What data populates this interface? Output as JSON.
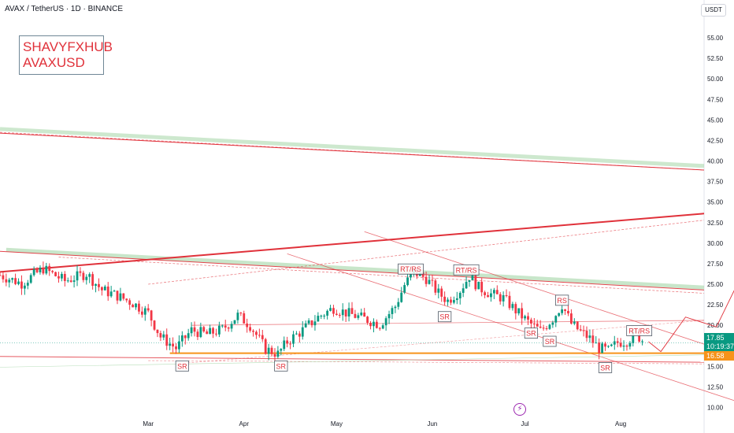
{
  "header": {
    "title": "AVAX / TetherUS · 1D · BINANCE"
  },
  "currency_button": "USDT",
  "watermark": {
    "line1": "SHAVYFXHUB",
    "line2": "AVAXUSD"
  },
  "price_tag": {
    "price": "17.85",
    "countdown": "10:19:37"
  },
  "support_tag": {
    "price": "16.58"
  },
  "icons": {
    "alert": "lightning-icon"
  },
  "colors": {
    "up": "#089981",
    "down": "#f23645",
    "trendline": "#e0313a",
    "channel_green": "#a5d6a7",
    "support": "#f7931a"
  },
  "chart_data": {
    "type": "candlestick",
    "symbol": "AVAX / TetherUS",
    "timeframe": "1D",
    "exchange": "BINANCE",
    "y_axis": {
      "ticks": [
        "55.00",
        "52.50",
        "50.00",
        "47.50",
        "45.00",
        "42.50",
        "40.00",
        "37.50",
        "35.00",
        "32.50",
        "30.00",
        "27.50",
        "25.00",
        "22.50",
        "20.00",
        "17.50",
        "15.00",
        "12.50",
        "10.00"
      ],
      "range": [
        8.8,
        57.5
      ]
    },
    "x_axis": {
      "months": [
        {
          "label": "Mar",
          "date": "2024-03-01"
        },
        {
          "label": "Apr",
          "date": "2024-04-01"
        },
        {
          "label": "May",
          "date": "2024-05-01"
        },
        {
          "label": "Jun",
          "date": "2024-06-01"
        },
        {
          "label": "Jul",
          "date": "2024-07-01"
        },
        {
          "label": "Aug",
          "date": "2024-08-01"
        }
      ],
      "range": [
        "2024-01-13",
        "2024-08-28"
      ]
    },
    "closes": [
      {
        "date": "2024-01-13",
        "value": 26.1
      },
      {
        "date": "2024-01-20",
        "value": 25.1
      },
      {
        "date": "2024-01-27",
        "value": 26.9
      },
      {
        "date": "2024-02-03",
        "value": 25.4
      },
      {
        "date": "2024-02-10",
        "value": 26.3
      },
      {
        "date": "2024-02-15",
        "value": 24.3
      },
      {
        "date": "2024-02-20",
        "value": 23.6
      },
      {
        "date": "2024-02-25",
        "value": 22.7
      },
      {
        "date": "2024-03-01",
        "value": 21.5
      },
      {
        "date": "2024-03-05",
        "value": 18.6
      },
      {
        "date": "2024-03-10",
        "value": 17.2
      },
      {
        "date": "2024-03-15",
        "value": 19.4
      },
      {
        "date": "2024-03-20",
        "value": 18.9
      },
      {
        "date": "2024-03-25",
        "value": 19.5
      },
      {
        "date": "2024-03-30",
        "value": 21.2
      },
      {
        "date": "2024-04-03",
        "value": 20.0
      },
      {
        "date": "2024-04-08",
        "value": 17.1
      },
      {
        "date": "2024-04-12",
        "value": 16.5
      },
      {
        "date": "2024-04-15",
        "value": 18.0
      },
      {
        "date": "2024-04-20",
        "value": 19.4
      },
      {
        "date": "2024-04-25",
        "value": 21.0
      },
      {
        "date": "2024-04-30",
        "value": 22.1
      },
      {
        "date": "2024-05-05",
        "value": 21.4
      },
      {
        "date": "2024-05-10",
        "value": 20.8
      },
      {
        "date": "2024-05-15",
        "value": 20.1
      },
      {
        "date": "2024-05-20",
        "value": 22.3
      },
      {
        "date": "2024-05-23",
        "value": 24.9
      },
      {
        "date": "2024-05-26",
        "value": 26.5
      },
      {
        "date": "2024-05-30",
        "value": 25.7
      },
      {
        "date": "2024-06-03",
        "value": 23.9
      },
      {
        "date": "2024-06-06",
        "value": 23.0
      },
      {
        "date": "2024-06-10",
        "value": 24.3
      },
      {
        "date": "2024-06-13",
        "value": 26.0
      },
      {
        "date": "2024-06-16",
        "value": 24.6
      },
      {
        "date": "2024-06-20",
        "value": 23.8
      },
      {
        "date": "2024-06-24",
        "value": 23.3
      },
      {
        "date": "2024-06-28",
        "value": 21.8
      },
      {
        "date": "2024-07-02",
        "value": 20.4
      },
      {
        "date": "2024-07-06",
        "value": 19.3
      },
      {
        "date": "2024-07-10",
        "value": 20.8
      },
      {
        "date": "2024-07-13",
        "value": 22.5
      },
      {
        "date": "2024-07-16",
        "value": 20.2
      },
      {
        "date": "2024-07-19",
        "value": 19.2
      },
      {
        "date": "2024-07-22",
        "value": 18.4
      },
      {
        "date": "2024-07-25",
        "value": 17.2
      },
      {
        "date": "2024-07-28",
        "value": 16.9
      },
      {
        "date": "2024-07-31",
        "value": 17.9
      },
      {
        "date": "2024-08-03",
        "value": 18.1
      },
      {
        "date": "2024-08-06",
        "value": 18.9
      },
      {
        "date": "2024-08-09",
        "value": 17.85
      }
    ],
    "annotations": [
      {
        "text": "RT/RS",
        "date": "2024-05-25",
        "value": 26.8
      },
      {
        "text": "RT/RS",
        "date": "2024-06-12",
        "value": 26.7
      },
      {
        "text": "RS",
        "date": "2024-07-13",
        "value": 23.0
      },
      {
        "text": "RT/RS",
        "date": "2024-08-07",
        "value": 19.3
      },
      {
        "text": "SR",
        "date": "2024-03-12",
        "value": 15.0
      },
      {
        "text": "SR",
        "date": "2024-04-13",
        "value": 15.0
      },
      {
        "text": "SR",
        "date": "2024-06-05",
        "value": 21.0
      },
      {
        "text": "SR",
        "date": "2024-07-03",
        "value": 19.0
      },
      {
        "text": "SR",
        "date": "2024-07-09",
        "value": 18.0
      },
      {
        "text": "SR",
        "date": "2024-07-27",
        "value": 14.8
      }
    ],
    "projection": [
      {
        "date": "2024-08-10",
        "value": 18.0
      },
      {
        "date": "2024-08-14",
        "value": 16.8
      },
      {
        "date": "2024-08-22",
        "value": 21.0
      },
      {
        "date": "2024-09-01",
        "value": 19.8
      },
      {
        "date": "2024-09-08",
        "value": 25.2
      },
      {
        "date": "2024-09-14",
        "value": 26.7
      },
      {
        "date": "2024-09-22",
        "value": 24.9
      },
      {
        "date": "2024-10-06",
        "value": 33.1
      }
    ],
    "levels": {
      "current_price": 17.85,
      "support": 16.58
    },
    "grid": false,
    "legend": "none"
  }
}
